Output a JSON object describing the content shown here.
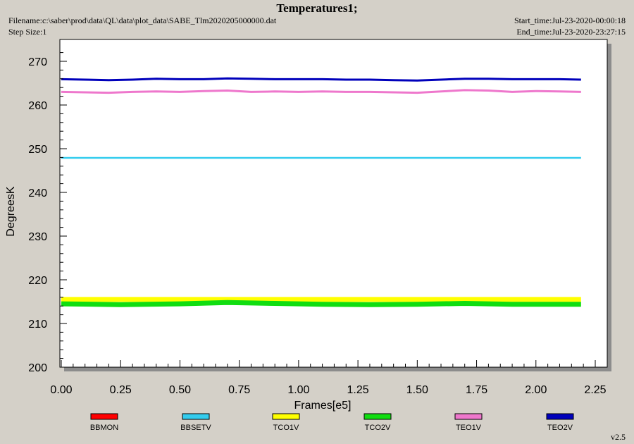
{
  "header": {
    "title": "Temperatures1;",
    "filename": "Filename:c:\\saber\\prod\\data\\QL\\data\\plot_data\\SABE_Tlm2020205000000.dat",
    "step_size": "Step Size:1",
    "start_time": "Start_time:Jul-23-2020-00:00:18",
    "end_time": "End_time:Jul-23-2020-23:27:15",
    "version": "v2.5"
  },
  "colors": {
    "background": "#d4d0c8",
    "plot_area": "#ffffff",
    "shadow": "#8c8c8c"
  },
  "chart_data": {
    "type": "line",
    "xlabel": "Frames[e5]",
    "ylabel": "DegreesK",
    "xlim": [
      0,
      2.3
    ],
    "ylim": [
      200,
      275
    ],
    "x_ticks": [
      "0.00",
      "0.25",
      "0.50",
      "0.75",
      "1.00",
      "1.25",
      "1.50",
      "1.75",
      "2.00",
      "2.25"
    ],
    "y_ticks": [
      "200",
      "210",
      "220",
      "230",
      "240",
      "250",
      "260",
      "270"
    ],
    "grid": false,
    "legend_position": "bottom",
    "series": [
      {
        "name": "BBMON",
        "color": "#ff0000",
        "x": [],
        "y": []
      },
      {
        "name": "BBSETV",
        "color": "#33ccee",
        "x": [
          0,
          0.5,
          1.0,
          1.5,
          2.0,
          2.19
        ],
        "y": [
          247.9,
          247.9,
          247.9,
          247.9,
          247.9,
          247.9
        ]
      },
      {
        "name": "TCO1V",
        "color": "#ffff00",
        "x": [
          0,
          0.5,
          1.0,
          1.5,
          2.0,
          2.19
        ],
        "y": [
          215.5,
          215.5,
          215.5,
          215.5,
          215.5,
          215.5
        ]
      },
      {
        "name": "TCO2V",
        "color": "#11dd11",
        "x": [
          0,
          0.25,
          0.5,
          0.7,
          0.9,
          1.1,
          1.3,
          1.5,
          1.7,
          1.9,
          2.19
        ],
        "y": [
          214.5,
          214.3,
          214.5,
          214.8,
          214.6,
          214.4,
          214.3,
          214.4,
          214.6,
          214.4,
          214.4
        ]
      },
      {
        "name": "TEO1V",
        "color": "#ee77cc",
        "x": [
          0,
          0.1,
          0.2,
          0.3,
          0.4,
          0.5,
          0.6,
          0.7,
          0.8,
          0.9,
          1.0,
          1.1,
          1.2,
          1.3,
          1.4,
          1.5,
          1.6,
          1.7,
          1.8,
          1.9,
          2.0,
          2.1,
          2.19
        ],
        "y": [
          263.0,
          262.9,
          262.8,
          263.0,
          263.1,
          263.0,
          263.2,
          263.3,
          263.0,
          263.1,
          263.0,
          263.1,
          263.0,
          263.0,
          262.9,
          262.8,
          263.1,
          263.4,
          263.3,
          263.0,
          263.2,
          263.1,
          263.0
        ]
      },
      {
        "name": "TEO2V",
        "color": "#0000bb",
        "x": [
          0,
          0.1,
          0.2,
          0.3,
          0.4,
          0.5,
          0.6,
          0.7,
          0.8,
          0.9,
          1.0,
          1.1,
          1.2,
          1.3,
          1.4,
          1.5,
          1.6,
          1.7,
          1.8,
          1.9,
          2.0,
          2.1,
          2.19
        ],
        "y": [
          265.9,
          265.8,
          265.7,
          265.8,
          266.0,
          265.9,
          265.9,
          266.1,
          266.0,
          265.9,
          265.9,
          265.9,
          265.8,
          265.8,
          265.7,
          265.6,
          265.8,
          266.0,
          266.0,
          265.9,
          265.9,
          265.9,
          265.8
        ]
      }
    ]
  }
}
